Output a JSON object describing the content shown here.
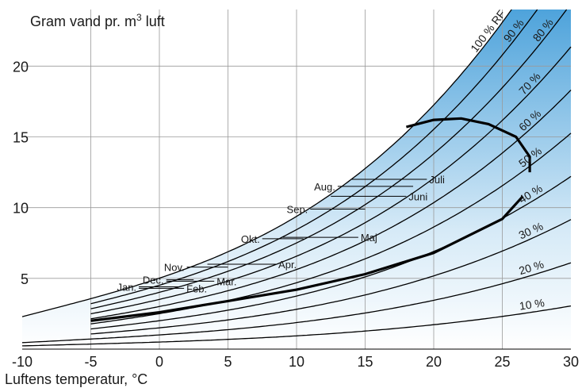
{
  "chart_data": {
    "type": "line",
    "ylabel_prefix": "Gram vand pr. m",
    "ylabel_sup": "3",
    "ylabel_suffix": " luft",
    "xlabel": "Luftens temperatur, °C",
    "xlim": [
      -10,
      30
    ],
    "ylim": [
      0,
      24
    ],
    "x_ticks": [
      -10,
      -5,
      0,
      5,
      10,
      15,
      20,
      25,
      30
    ],
    "x_tick_labels": [
      "-10",
      "-5",
      "0",
      "5",
      "10",
      "15",
      "20",
      "25",
      "30"
    ],
    "y_ticks": [
      5,
      10,
      15,
      20
    ],
    "y_tick_labels": [
      "5",
      "10",
      "15",
      "20"
    ],
    "grid": true,
    "fill": "blue gradient up to saturation curve",
    "colors": {
      "fill_dark": "#5aa8dc",
      "fill_light": "#ffffff",
      "line": "#000000",
      "grid": "#9a9a9a"
    },
    "rh_curves": [
      {
        "rh": 100,
        "label": "100 % RF"
      },
      {
        "rh": 90,
        "label": "90 %"
      },
      {
        "rh": 80,
        "label": "80 %"
      },
      {
        "rh": 70,
        "label": "70 %"
      },
      {
        "rh": 60,
        "label": "60 %"
      },
      {
        "rh": 50,
        "label": "50 %"
      },
      {
        "rh": 40,
        "label": "40 %"
      },
      {
        "rh": 30,
        "label": "30 %"
      },
      {
        "rh": 20,
        "label": "20 %"
      },
      {
        "rh": 10,
        "label": "10 %"
      }
    ],
    "outdoor_curve": {
      "x": [
        -5,
        0,
        5,
        10,
        15,
        20,
        25,
        26.5
      ],
      "y": [
        2.0,
        2.6,
        3.4,
        4.2,
        5.3,
        6.8,
        9.2,
        10.8
      ]
    },
    "indoor_arc": {
      "x": [
        18,
        20,
        22,
        24,
        26,
        27,
        27
      ],
      "y": [
        15.7,
        16.2,
        16.3,
        15.9,
        15.0,
        13.6,
        12.5
      ]
    },
    "months": [
      {
        "label": "Jan.",
        "x1": -1.5,
        "x2": 1.5,
        "y": 4.4,
        "side": "left"
      },
      {
        "label": "Feb.",
        "x1": -1.5,
        "x2": 1.8,
        "y": 4.3,
        "side": "right"
      },
      {
        "label": "Dec.",
        "x1": 0.5,
        "x2": 2.5,
        "y": 4.9,
        "side": "left"
      },
      {
        "label": "Mar.",
        "x1": 0.5,
        "x2": 4.0,
        "y": 4.8,
        "side": "right"
      },
      {
        "label": "Nov.",
        "x1": 2.0,
        "x2": 5.0,
        "y": 5.8,
        "side": "left"
      },
      {
        "label": "Apr.",
        "x1": 3.5,
        "x2": 8.5,
        "y": 6.0,
        "side": "right"
      },
      {
        "label": "Okt.",
        "x1": 7.5,
        "x2": 10.5,
        "y": 7.8,
        "side": "left"
      },
      {
        "label": "Maj",
        "x1": 9.0,
        "x2": 14.5,
        "y": 7.9,
        "side": "right"
      },
      {
        "label": "Sep.",
        "x1": 11.0,
        "x2": 15.0,
        "y": 9.9,
        "side": "left"
      },
      {
        "label": "Aug.",
        "x1": 13.0,
        "x2": 18.5,
        "y": 11.5,
        "side": "left"
      },
      {
        "label": "Juli",
        "x1": 14.0,
        "x2": 19.5,
        "y": 12.0,
        "side": "right"
      },
      {
        "label": "Juni",
        "x1": 12.5,
        "x2": 18.0,
        "y": 10.8,
        "side": "right"
      }
    ]
  }
}
